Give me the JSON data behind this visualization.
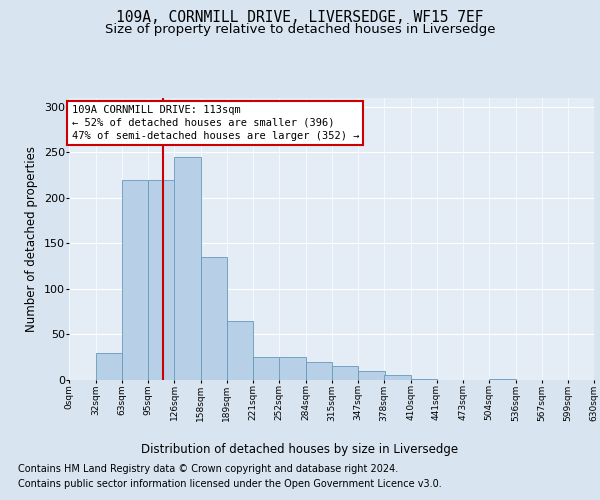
{
  "title": "109A, CORNMILL DRIVE, LIVERSEDGE, WF15 7EF",
  "subtitle": "Size of property relative to detached houses in Liversedge",
  "xlabel": "Distribution of detached houses by size in Liversedge",
  "ylabel": "Number of detached properties",
  "footer_line1": "Contains HM Land Registry data © Crown copyright and database right 2024.",
  "footer_line2": "Contains public sector information licensed under the Open Government Licence v3.0.",
  "annotation_line1": "109A CORNMILL DRIVE: 113sqm",
  "annotation_line2": "← 52% of detached houses are smaller (396)",
  "annotation_line3": "47% of semi-detached houses are larger (352) →",
  "bin_edges": [
    0,
    32,
    63,
    95,
    126,
    158,
    189,
    221,
    252,
    284,
    315,
    347,
    378,
    410,
    441,
    473,
    504,
    536,
    567,
    599,
    630
  ],
  "bar_heights": [
    0,
    30,
    220,
    220,
    245,
    135,
    65,
    25,
    25,
    20,
    15,
    10,
    5,
    1,
    0,
    0,
    1,
    0,
    0,
    0
  ],
  "bar_color": "#b8cfe8",
  "bar_edge_color": "#6699bb",
  "property_line_x": 113,
  "property_line_color": "#cc0000",
  "ylim": [
    0,
    310
  ],
  "yticks": [
    0,
    50,
    100,
    150,
    200,
    250,
    300
  ],
  "background_color": "#d8e4f0",
  "plot_background_color": "#e4edf5",
  "grid_color": "#ffffff",
  "annotation_box_color": "#ffffff",
  "annotation_box_edge_color": "#cc0000",
  "title_fontsize": 10.5,
  "subtitle_fontsize": 9.5,
  "xlabel_fontsize": 8.5,
  "ylabel_fontsize": 8.5,
  "annotation_fontsize": 7.5,
  "footer_fontsize": 7.0,
  "tick_fontsize": 6.5
}
